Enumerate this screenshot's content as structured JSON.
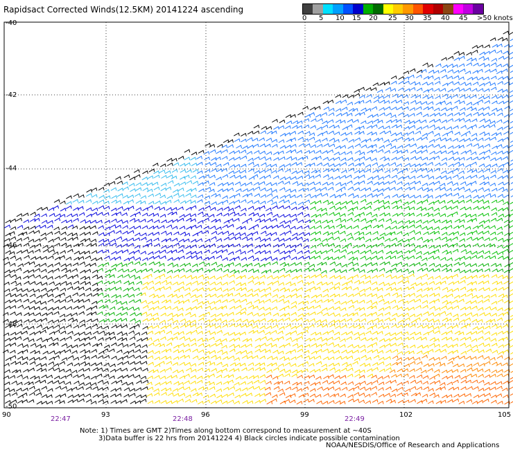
{
  "title": "Rapidsact Corrected Winds(12.5KM) 20141224 ascending",
  "colorbar": {
    "colors": [
      "#404040",
      "#a0a0a0",
      "#00e0ff",
      "#00a0ff",
      "#0050ff",
      "#0000cc",
      "#00b000",
      "#006a00",
      "#ffff00",
      "#ffcc00",
      "#ff9900",
      "#ff5500",
      "#e00000",
      "#b00000",
      "#8b4513",
      "#ff00ff",
      "#c000e0",
      "#6a00a0"
    ],
    "labels": [
      "0",
      "5",
      "10",
      "15",
      "20",
      "25",
      "30",
      "35",
      "40",
      "45",
      ">50 knots"
    ]
  },
  "map": {
    "lat_labels": [
      "-40",
      "-42",
      "-44",
      "-46",
      "-48",
      "-50"
    ],
    "lon_labels": [
      "90",
      "93",
      "96",
      "99",
      "102",
      "105"
    ],
    "time_labels": [
      "22:47",
      "22:48",
      "22:49"
    ]
  },
  "note": {
    "line1": "Note: 1) Times are GMT 2)Times along bottom correspond to measurement at ~40S",
    "line2": "3)Data buffer is 22 hrs from 20141224 4) Black circles indicate possible contamination"
  },
  "credit": "NOAA/NESDIS/Office of Research and Applications"
}
